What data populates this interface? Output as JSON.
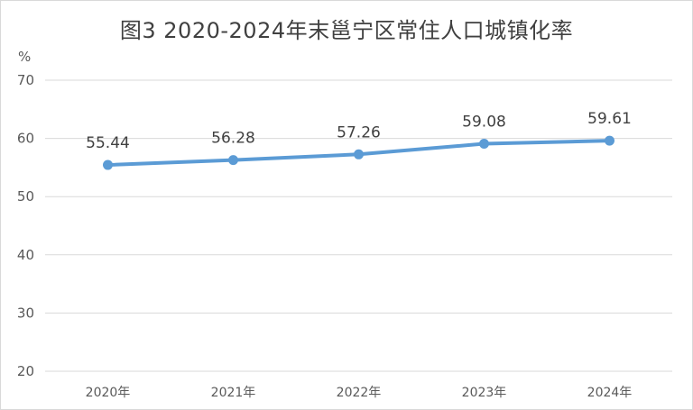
{
  "chart_data": {
    "type": "line",
    "title": "图3   2020-2024年末邕宁区常住人口城镇化率",
    "ylabel": "%",
    "xlabel": "",
    "categories": [
      "2020年",
      "2021年",
      "2022年",
      "2023年",
      "2024年"
    ],
    "series": [
      {
        "values": [
          55.44,
          56.28,
          57.26,
          59.08,
          59.61
        ]
      }
    ],
    "data_labels": [
      "55.44",
      "56.28",
      "57.26",
      "59.08",
      "59.61"
    ],
    "ylim": [
      20,
      70
    ],
    "yticks": [
      20,
      30,
      40,
      50,
      60,
      70
    ],
    "grid": true,
    "legend": "none",
    "colors": {
      "line": "#5b9bd5",
      "grid": "#d9d9d9",
      "text": "#595959"
    }
  }
}
